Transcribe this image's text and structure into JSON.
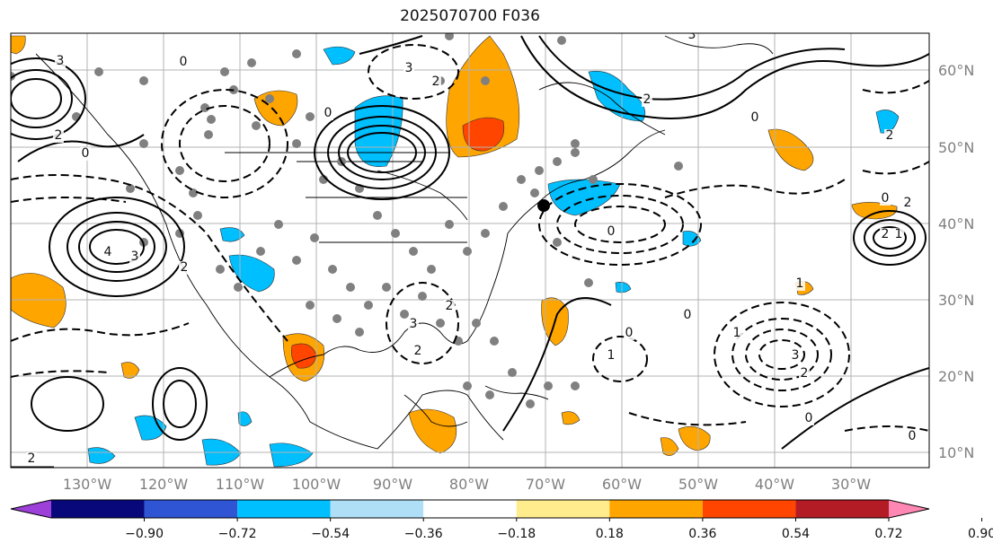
{
  "title": "2025070700 F036",
  "longitudes": [
    "130°W",
    "120°W",
    "110°W",
    "100°W",
    "90°W",
    "80°W",
    "70°W",
    "60°W",
    "50°W",
    "40°W",
    "30°W"
  ],
  "latitudes": [
    "60°N",
    "50°N",
    "40°N",
    "30°N",
    "20°N",
    "10°N"
  ],
  "colorbar": {
    "colors": [
      "#9d3fd9",
      "#08087a",
      "#2f55d4",
      "#00bfff",
      "#afdff7",
      "#ffffff",
      "#ffec8c",
      "#ffa500",
      "#ff4500",
      "#b31c24",
      "#ff87b3"
    ],
    "tick_labels": [
      "−0.90",
      "−0.72",
      "−0.54",
      "−0.36",
      "−0.18",
      "0.18",
      "0.36",
      "0.54",
      "0.72",
      "0.90"
    ]
  },
  "contour_labels": [
    "3",
    "0",
    "2",
    "3",
    "4",
    "2",
    "0",
    "3",
    "2",
    "0",
    "3",
    "2",
    "0",
    "2",
    "0",
    "2",
    "1",
    "2",
    "1",
    "3",
    "1",
    "2",
    "0",
    "2",
    "3",
    "0",
    "2",
    "1",
    "0",
    "0",
    "0",
    "2"
  ]
}
